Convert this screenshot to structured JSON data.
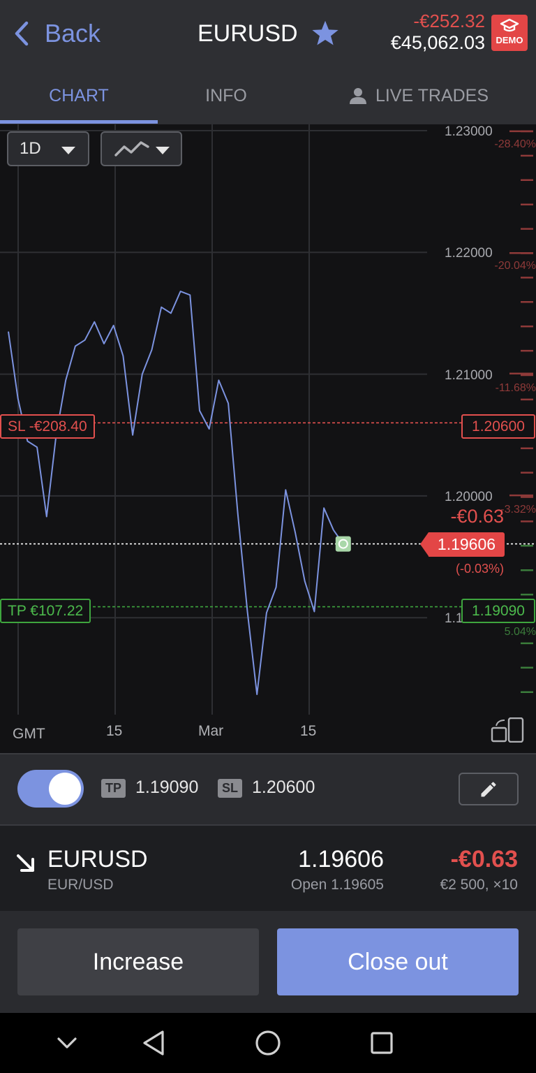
{
  "header": {
    "back_label": "Back",
    "title": "EURUSD",
    "pnl": "-€252.32",
    "balance": "€45,062.03",
    "demo_label": "DEMO"
  },
  "tabs": [
    {
      "label": "CHART",
      "active": true
    },
    {
      "label": "INFO",
      "active": false
    },
    {
      "label": "LIVE TRADES",
      "active": false
    }
  ],
  "chart_controls": {
    "timeframe": "1D",
    "chart_type_icon": "line-chart-icon"
  },
  "chart_data": {
    "type": "line",
    "y_ticks": [
      "1.23000",
      "1.22000",
      "1.21000",
      "1.20000"
    ],
    "y_partial_label": "1.1",
    "ylim": [
      1.1825,
      1.2305
    ],
    "x_ticks": [
      {
        "label": "15",
        "index": 11
      },
      {
        "label": "Mar",
        "index": 21
      },
      {
        "label": "15",
        "index": 31
      }
    ],
    "x_prefix": "GMT",
    "values": [
      1.2135,
      1.208,
      1.2045,
      1.204,
      1.1983,
      1.205,
      1.2095,
      1.2123,
      1.2128,
      1.2143,
      1.2125,
      1.214,
      1.2115,
      1.205,
      1.21,
      1.212,
      1.2155,
      1.215,
      1.2168,
      1.2165,
      1.207,
      1.2055,
      1.2095,
      1.2076,
      1.1985,
      1.1905,
      1.1837,
      1.1904,
      1.1925,
      1.2005,
      1.197,
      1.193,
      1.1905,
      1.199,
      1.1972
    ],
    "current_price": 1.19606,
    "stop_loss": {
      "price_label": "1.20600",
      "price": 1.206,
      "label": "SL -€208.40"
    },
    "take_profit": {
      "price_label": "1.19090",
      "price": 1.1909,
      "label": "TP €107.22"
    },
    "position_pnl": "-€0.63",
    "position_pct": "(-0.03%)",
    "price_tag": "1.19606",
    "percent_scale": [
      {
        "label": "-28.40%",
        "price": 1.2288,
        "color": "red"
      },
      {
        "label": "-20.04%",
        "price": 1.2188,
        "color": "red"
      },
      {
        "label": "-11.68%",
        "price": 1.2089,
        "color": "red"
      },
      {
        "label": "-3.32%",
        "price": 1.1989,
        "color": "red"
      },
      {
        "label": "5.04%",
        "price": 1.189,
        "color": "green"
      }
    ],
    "colors": {
      "line": "#7c93e0",
      "sl": "#e2504e",
      "tp": "#3ea53e",
      "grid": "#2e2f33"
    }
  },
  "tpsl_bar": {
    "toggle_on": true,
    "tp_badge": "TP",
    "tp_value": "1.19090",
    "sl_badge": "SL",
    "sl_value": "1.20600"
  },
  "position": {
    "symbol": "EURUSD",
    "pair": "EUR/USD",
    "price": "1.19606",
    "open": "Open 1.19605",
    "pnl": "-€0.63",
    "size": "€2 500, ×10",
    "direction": "sell"
  },
  "actions": {
    "increase_label": "Increase",
    "close_label": "Close out"
  }
}
